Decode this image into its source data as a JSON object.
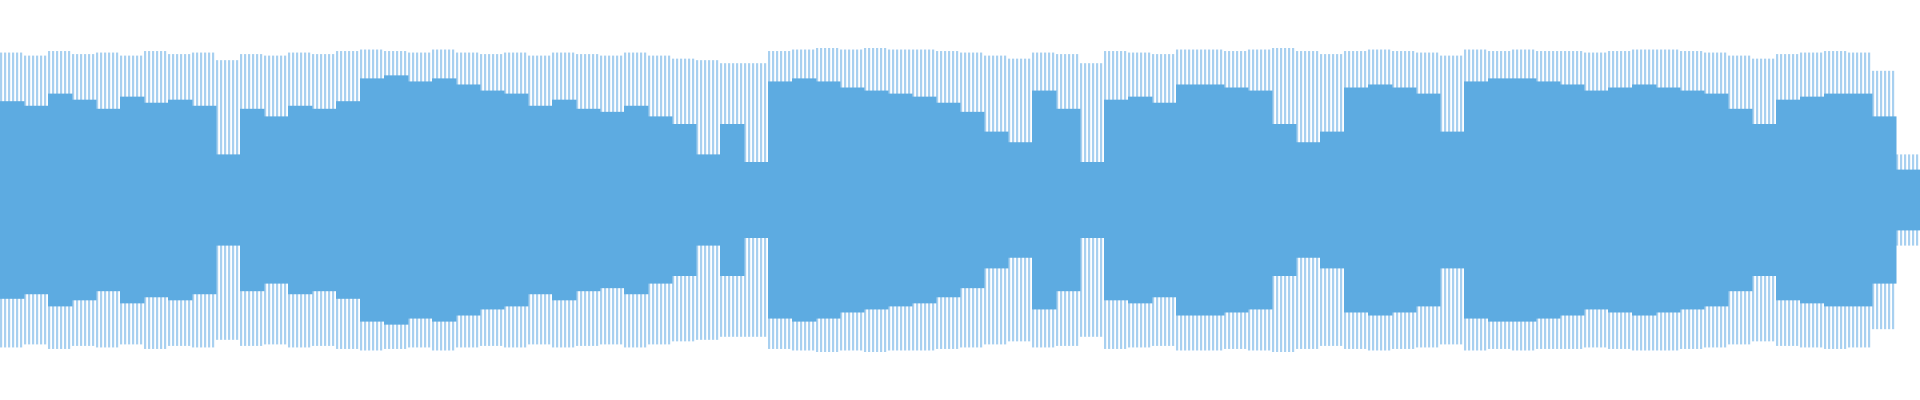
{
  "waveform": {
    "peak_color": "#a8d0f0",
    "rms_color": "#5dabe1",
    "peaks": [
      0.97,
      0.95,
      0.98,
      0.96,
      0.97,
      0.95,
      0.98,
      0.96,
      0.97,
      0.92,
      0.96,
      0.95,
      0.97,
      0.96,
      0.98,
      0.99,
      0.98,
      0.97,
      0.99,
      0.97,
      0.96,
      0.97,
      0.95,
      0.97,
      0.96,
      0.95,
      0.97,
      0.95,
      0.93,
      0.92,
      0.9,
      0.9,
      0.98,
      0.99,
      1.0,
      0.99,
      1.0,
      0.99,
      0.99,
      0.98,
      0.97,
      0.95,
      0.93,
      0.97,
      0.96,
      0.9,
      0.98,
      0.97,
      0.96,
      0.99,
      0.99,
      0.98,
      0.99,
      1.0,
      0.98,
      0.96,
      0.98,
      0.99,
      0.98,
      0.97,
      0.95,
      0.99,
      0.98,
      0.99,
      0.98,
      0.98,
      0.97,
      0.98,
      0.99,
      0.99,
      0.98,
      0.97,
      0.95,
      0.93,
      0.96,
      0.97,
      0.98,
      0.97,
      0.85,
      0.3
    ],
    "rms": [
      0.65,
      0.62,
      0.7,
      0.66,
      0.6,
      0.68,
      0.64,
      0.66,
      0.62,
      0.3,
      0.6,
      0.55,
      0.62,
      0.6,
      0.65,
      0.8,
      0.82,
      0.78,
      0.8,
      0.76,
      0.72,
      0.7,
      0.62,
      0.66,
      0.6,
      0.58,
      0.62,
      0.55,
      0.5,
      0.3,
      0.5,
      0.25,
      0.78,
      0.8,
      0.78,
      0.74,
      0.72,
      0.7,
      0.68,
      0.64,
      0.58,
      0.45,
      0.38,
      0.72,
      0.6,
      0.25,
      0.66,
      0.68,
      0.64,
      0.76,
      0.76,
      0.74,
      0.72,
      0.5,
      0.38,
      0.45,
      0.74,
      0.76,
      0.74,
      0.7,
      0.45,
      0.78,
      0.8,
      0.8,
      0.78,
      0.76,
      0.72,
      0.74,
      0.76,
      0.74,
      0.72,
      0.7,
      0.6,
      0.5,
      0.66,
      0.68,
      0.7,
      0.7,
      0.55,
      0.2
    ]
  }
}
